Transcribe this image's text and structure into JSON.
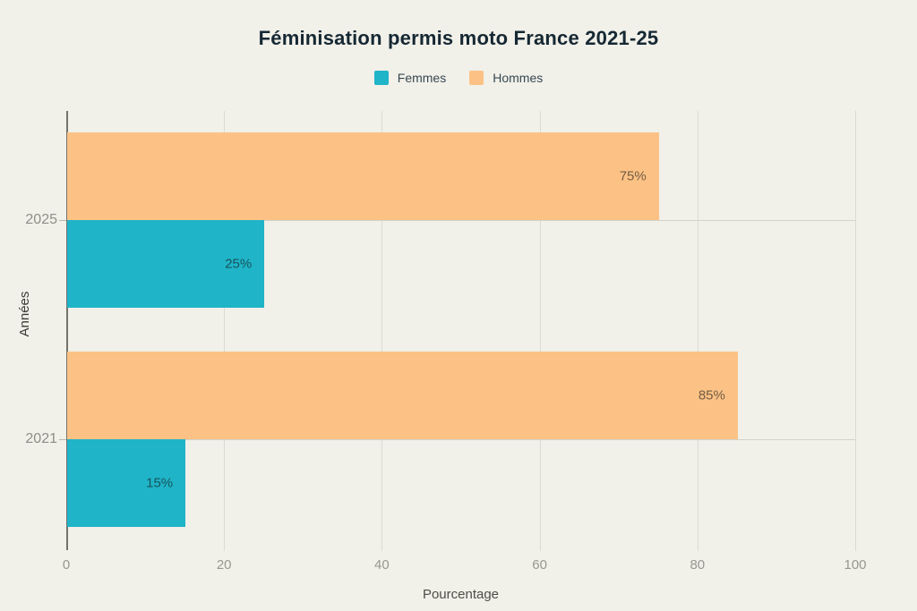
{
  "title": "Féminisation permis moto France 2021-25",
  "legend": {
    "items": [
      {
        "label": "Femmes",
        "color": "#1fb4c8"
      },
      {
        "label": "Hommes",
        "color": "#fcc285"
      }
    ]
  },
  "axes": {
    "x_title": "Pourcentage",
    "y_title": "Années"
  },
  "chart_data": {
    "type": "bar",
    "orientation": "horizontal",
    "title": "Féminisation permis moto France 2021-25",
    "xlabel": "Pourcentage",
    "ylabel": "Années",
    "categories": [
      "2025",
      "2021"
    ],
    "series": [
      {
        "name": "Femmes",
        "color": "#1fb4c8",
        "values": [
          25,
          15
        ],
        "labels": [
          "25%",
          "15%"
        ]
      },
      {
        "name": "Hommes",
        "color": "#fcc285",
        "values": [
          75,
          85
        ],
        "labels": [
          "75%",
          "85%"
        ]
      }
    ],
    "xlim": [
      0,
      100
    ],
    "x_ticks": [
      0,
      20,
      40,
      60,
      80,
      100
    ],
    "grid": true,
    "legend_position": "top"
  },
  "colors": {
    "background": "#f1f0e9",
    "title_text": "#152833",
    "tick_text": "#98978f",
    "gridline": "#dbdad3",
    "axis_line": "#73736c"
  }
}
